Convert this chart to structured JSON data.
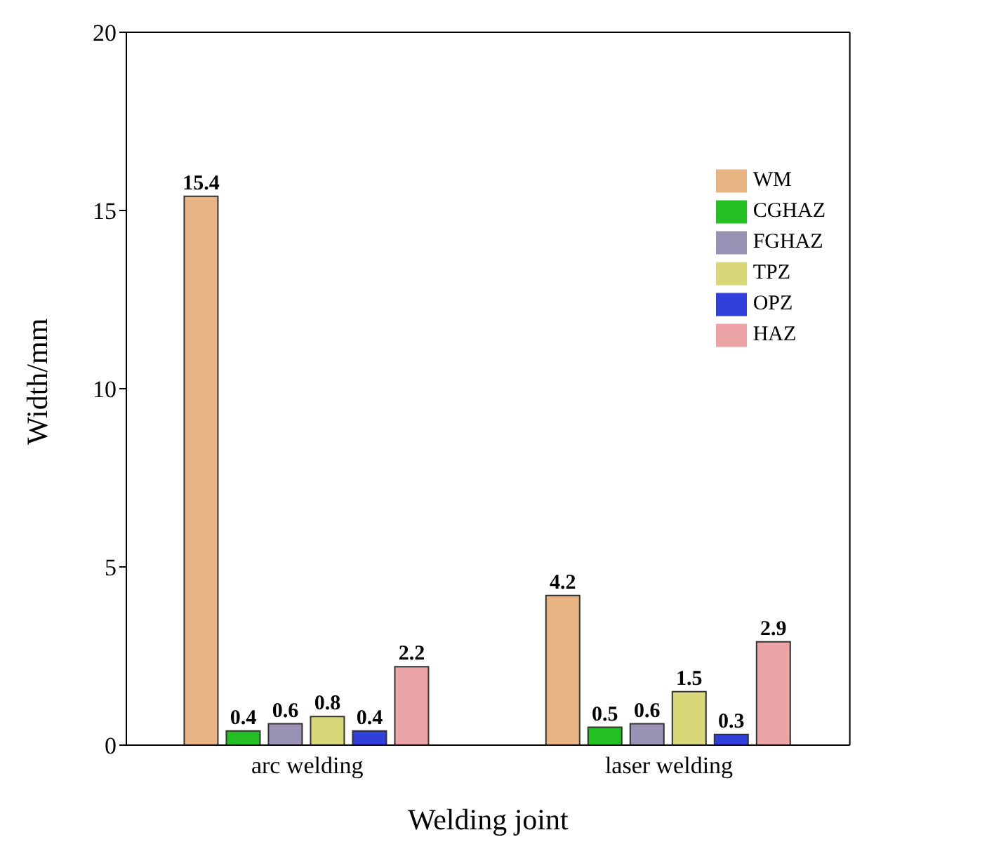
{
  "chart_data": {
    "type": "bar",
    "xlabel": "Welding joint",
    "ylabel": "Width/mm",
    "categories": [
      "arc welding",
      "laser welding"
    ],
    "series": [
      {
        "name": "WM",
        "color": "#e8b484",
        "values": [
          15.4,
          4.2
        ]
      },
      {
        "name": "CGHAZ",
        "color": "#22c022",
        "values": [
          0.4,
          0.5
        ]
      },
      {
        "name": "FGHAZ",
        "color": "#9a92b4",
        "values": [
          0.6,
          0.6
        ]
      },
      {
        "name": "TPZ",
        "color": "#d8d878",
        "values": [
          0.8,
          1.5
        ]
      },
      {
        "name": "OPZ",
        "color": "#3040d8",
        "values": [
          0.4,
          0.3
        ]
      },
      {
        "name": "HAZ",
        "color": "#eca4a6",
        "values": [
          2.2,
          2.9
        ]
      }
    ],
    "ylim": [
      0,
      20
    ],
    "yticks": [
      0,
      5,
      10,
      15,
      20
    ],
    "grid": false,
    "legend": "top right",
    "data_labels": true
  }
}
